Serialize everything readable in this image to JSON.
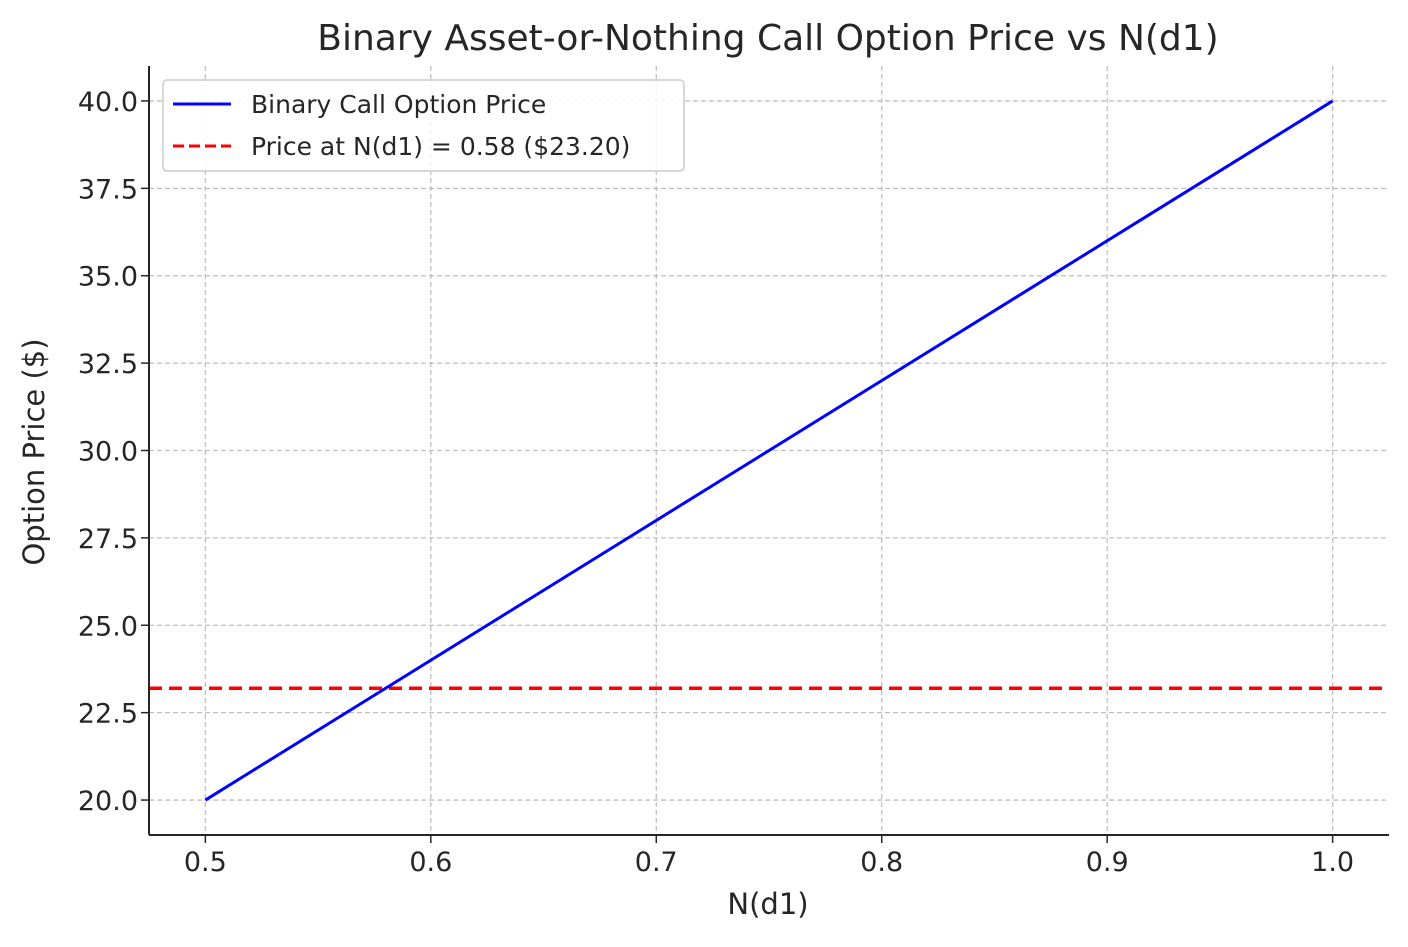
{
  "chart_data": {
    "type": "line",
    "title": "Binary Asset-or-Nothing Call Option Price vs N(d1)",
    "xlabel": "N(d1)",
    "ylabel": "Option Price ($)",
    "xlim": [
      0.475,
      1.025
    ],
    "ylim": [
      19.0,
      41.0
    ],
    "xticks": [
      0.5,
      0.6,
      0.7,
      0.8,
      0.9,
      1.0
    ],
    "xtick_labels": [
      "0.5",
      "0.6",
      "0.7",
      "0.8",
      "0.9",
      "1.0"
    ],
    "yticks": [
      20.0,
      22.5,
      25.0,
      27.5,
      30.0,
      32.5,
      35.0,
      37.5,
      40.0
    ],
    "ytick_labels": [
      "20.0",
      "22.5",
      "25.0",
      "27.5",
      "30.0",
      "32.5",
      "35.0",
      "37.5",
      "40.0"
    ],
    "grid": true,
    "legend_position": "top-left",
    "series": [
      {
        "name": "Binary Call Option Price",
        "color": "#0000ff",
        "style": "solid",
        "x": [
          0.5,
          1.0
        ],
        "y": [
          20.0,
          40.0
        ]
      }
    ],
    "reference_lines": [
      {
        "name": "Price at N(d1) = 0.58 ($23.20)",
        "orientation": "horizontal",
        "y": 23.2,
        "color": "#ff0000",
        "style": "dashed"
      }
    ]
  }
}
